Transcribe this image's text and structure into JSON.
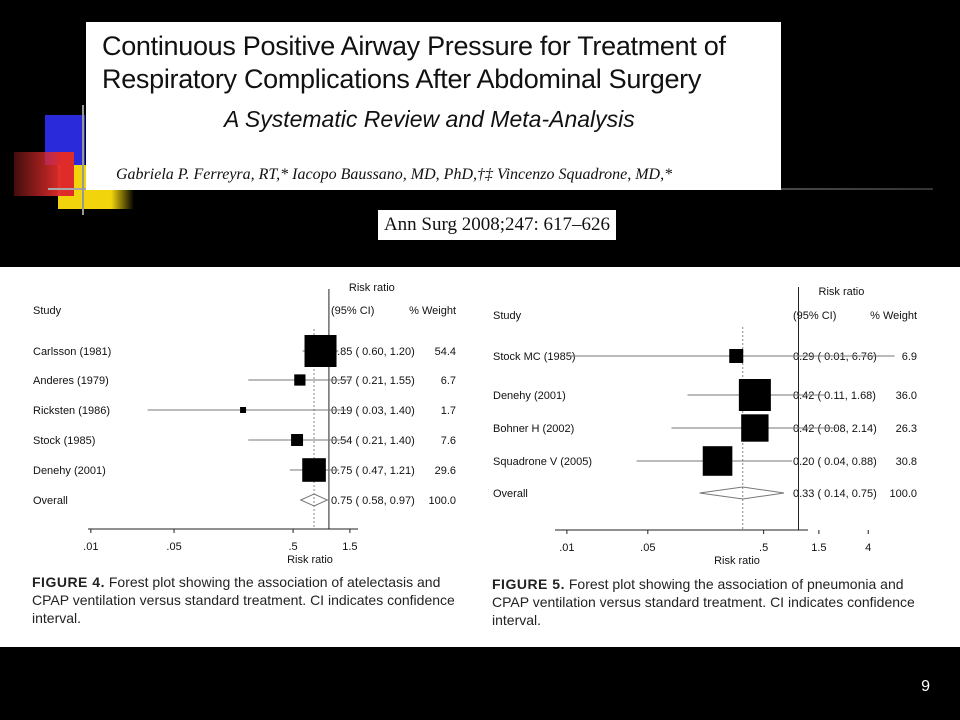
{
  "title": {
    "main": "Continuous Positive Airway Pressure for Treatment of Respiratory Complications After Abdominal Surgery",
    "subtitle": "A Systematic Review and Meta-Analysis",
    "authors": "Gabriela P. Ferreyra, RT,* Iacopo Baussano, MD, PhD,†‡ Vincenzo Squadrone, MD,*"
  },
  "citation": "Ann Surg 2008;247: 617–626",
  "page_number": "9",
  "colors": {
    "background": "#000000",
    "panel": "#ffffff",
    "deco_blue": "#2a2adb",
    "deco_red": "#e02b2b",
    "deco_yellow": "#f2d40d"
  },
  "chart_data": [
    {
      "type": "forest",
      "headers": {
        "study": "Study",
        "rr": "Risk ratio",
        "ci": "(95% CI)",
        "weight": "% Weight"
      },
      "rows": [
        {
          "study": "Carlsson (1981)",
          "rr": 0.85,
          "lo": 0.6,
          "hi": 1.2,
          "label": "0.85 ( 0.60, 1.20)",
          "weight": "54.4"
        },
        {
          "study": "Anderes (1979)",
          "rr": 0.57,
          "lo": 0.21,
          "hi": 1.55,
          "label": "0.57 ( 0.21, 1.55)",
          "weight": "6.7"
        },
        {
          "study": "Ricksten (1986)",
          "rr": 0.19,
          "lo": 0.03,
          "hi": 1.4,
          "label": "0.19 ( 0.03, 1.40)",
          "weight": "1.7"
        },
        {
          "study": "Stock (1985)",
          "rr": 0.54,
          "lo": 0.21,
          "hi": 1.4,
          "label": "0.54 ( 0.21, 1.40)",
          "weight": "7.6"
        },
        {
          "study": "Denehy (2001)",
          "rr": 0.75,
          "lo": 0.47,
          "hi": 1.21,
          "label": "0.75 ( 0.47, 1.21)",
          "weight": "29.6"
        }
      ],
      "overall": {
        "study": "Overall",
        "rr": 0.75,
        "lo": 0.58,
        "hi": 0.97,
        "label": "0.75 ( 0.58, 0.97)",
        "weight": "100.0"
      },
      "xticks": [
        ".01",
        ".05",
        ".5",
        "1.5"
      ],
      "xlabel": "Risk ratio",
      "caption_label": "FIGURE 4.",
      "caption_text": "Forest plot showing the association of atelectasis and CPAP ventilation versus standard treatment. CI indicates confidence interval."
    },
    {
      "type": "forest",
      "headers": {
        "study": "Study",
        "rr": "Risk ratio",
        "ci": "(95% CI)",
        "weight": "% Weight"
      },
      "rows": [
        {
          "study": "Stock MC (1985)",
          "rr": 0.29,
          "lo": 0.01,
          "hi": 6.76,
          "label": "0.29 ( 0.01, 6.76)",
          "weight": "6.9"
        },
        {
          "study": "Denehy (2001)",
          "rr": 0.42,
          "lo": 0.11,
          "hi": 1.68,
          "label": "0.42 ( 0.11, 1.68)",
          "weight": "36.0"
        },
        {
          "study": "Bohner H (2002)",
          "rr": 0.42,
          "lo": 0.08,
          "hi": 2.14,
          "label": "0.42 ( 0.08, 2.14)",
          "weight": "26.3"
        },
        {
          "study": "Squadrone V (2005)",
          "rr": 0.2,
          "lo": 0.04,
          "hi": 0.88,
          "label": "0.20 ( 0.04, 0.88)",
          "weight": "30.8"
        }
      ],
      "overall": {
        "study": "Overall",
        "rr": 0.33,
        "lo": 0.14,
        "hi": 0.75,
        "label": "0.33 ( 0.14, 0.75)",
        "weight": "100.0"
      },
      "xticks": [
        ".01",
        ".05",
        ".5",
        "1.5",
        "4"
      ],
      "xlabel": "Risk ratio",
      "caption_label": "FIGURE 5.",
      "caption_text": "Forest plot showing the association of pneumonia and CPAP ventilation versus standard treatment. CI indicates confidence interval."
    }
  ]
}
